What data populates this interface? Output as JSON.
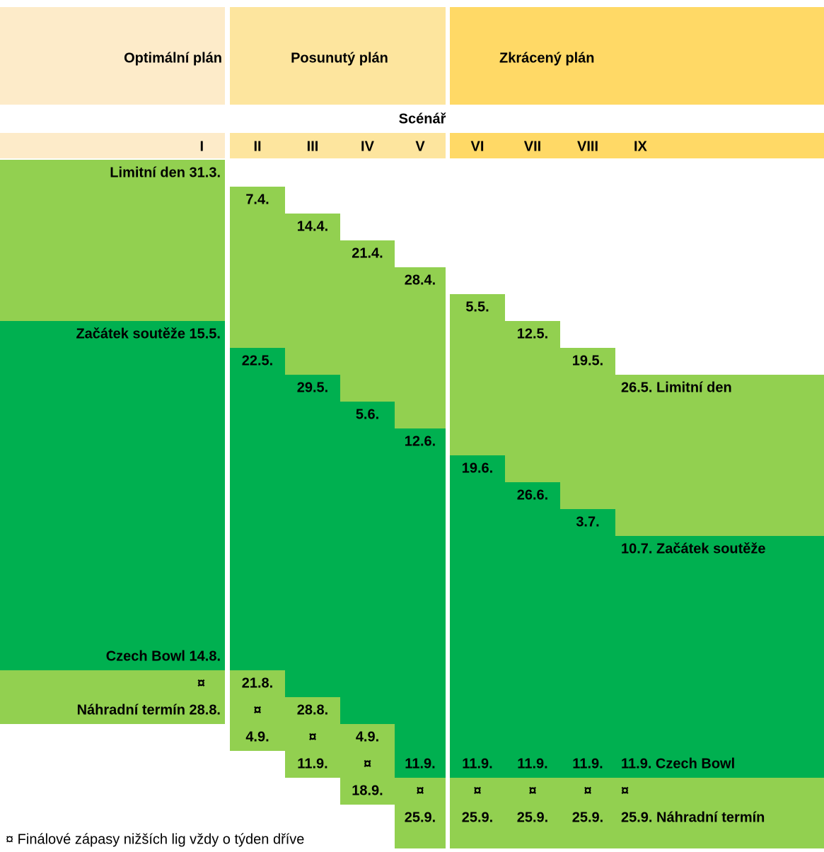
{
  "header": {
    "plans": [
      "Optimální plán",
      "Posunutý plán",
      "Zkrácený plán"
    ],
    "scenario_label": "Scénář",
    "scenarios": [
      "I",
      "II",
      "III",
      "IV",
      "V",
      "VI",
      "VII",
      "VIII",
      "IX"
    ]
  },
  "table": {
    "rows": [
      [
        "Limitní den 31.3.",
        null,
        null,
        null,
        null,
        null,
        null,
        null,
        null
      ],
      [
        null,
        "7.4.",
        null,
        null,
        null,
        null,
        null,
        null,
        null
      ],
      [
        null,
        null,
        "14.4.",
        null,
        null,
        null,
        null,
        null,
        null
      ],
      [
        null,
        null,
        null,
        "21.4.",
        null,
        null,
        null,
        null,
        null
      ],
      [
        null,
        null,
        null,
        null,
        "28.4.",
        null,
        null,
        null,
        null
      ],
      [
        null,
        null,
        null,
        null,
        null,
        "5.5.",
        null,
        null,
        null
      ],
      [
        "Začátek soutěže 15.5.",
        null,
        null,
        null,
        null,
        null,
        "12.5.",
        null,
        null
      ],
      [
        null,
        "22.5.",
        null,
        null,
        null,
        null,
        null,
        "19.5.",
        null
      ],
      [
        null,
        null,
        "29.5.",
        null,
        null,
        null,
        null,
        null,
        "26.5. Limitní den"
      ],
      [
        null,
        null,
        null,
        "5.6.",
        null,
        null,
        null,
        null,
        null
      ],
      [
        null,
        null,
        null,
        null,
        "12.6.",
        null,
        null,
        null,
        null
      ],
      [
        null,
        null,
        null,
        null,
        null,
        "19.6.",
        null,
        null,
        null
      ],
      [
        null,
        null,
        null,
        null,
        null,
        null,
        "26.6.",
        null,
        null
      ],
      [
        null,
        null,
        null,
        null,
        null,
        null,
        null,
        "3.7.",
        null
      ],
      [
        null,
        null,
        null,
        null,
        null,
        null,
        null,
        null,
        "10.7. Začátek soutěže"
      ],
      [
        null,
        null,
        null,
        null,
        null,
        null,
        null,
        null,
        null
      ],
      [
        null,
        null,
        null,
        null,
        null,
        null,
        null,
        null,
        null
      ],
      [
        null,
        null,
        null,
        null,
        null,
        null,
        null,
        null,
        null
      ],
      [
        "Czech Bowl 14.8.",
        null,
        null,
        null,
        null,
        null,
        null,
        null,
        null
      ],
      [
        "¤",
        "21.8.",
        null,
        null,
        null,
        null,
        null,
        null,
        null
      ],
      [
        "Náhradní termín 28.8.",
        "¤",
        "28.8.",
        null,
        null,
        null,
        null,
        null,
        null
      ],
      [
        null,
        "4.9.",
        "¤",
        "4.9.",
        null,
        null,
        null,
        null,
        null
      ],
      [
        null,
        null,
        "11.9.",
        "¤",
        "11.9.",
        "11.9.",
        "11.9.",
        "11.9.",
        "11.9. Czech Bowl"
      ],
      [
        null,
        null,
        null,
        "18.9.",
        "¤",
        "¤",
        "¤",
        "¤",
        "¤"
      ],
      [
        null,
        null,
        null,
        null,
        "25.9.",
        "25.9.",
        "25.9.",
        "25.9.",
        "25.9. Náhradní termín"
      ]
    ]
  },
  "footnote": "¤ Finálové zápasy nižších lig vždy o týden dříve"
}
